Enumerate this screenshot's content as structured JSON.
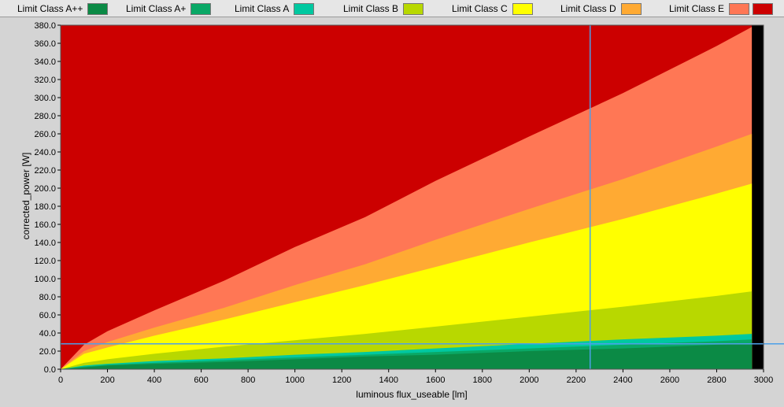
{
  "legend": {
    "items": [
      {
        "label": "Limit Class A++",
        "color": "#0b8a45"
      },
      {
        "label": "Limit Class A+",
        "color": "#0aa866"
      },
      {
        "label": "Limit Class A",
        "color": "#00c8a0"
      },
      {
        "label": "Limit Class B",
        "color": "#b8d800"
      },
      {
        "label": "Limit Class C",
        "color": "#ffff00"
      },
      {
        "label": "Limit Class D",
        "color": "#ffaa33"
      },
      {
        "label": "Limit Class E",
        "color": "#ff7755"
      },
      {
        "label": "",
        "color": "#cc0000"
      }
    ]
  },
  "chart_data": {
    "type": "area",
    "xlabel": "luminous flux_useable [lm]",
    "ylabel": "corrected_power [W]",
    "xlim": [
      0,
      3000
    ],
    "ylim": [
      0,
      380
    ],
    "xticks": [
      "0",
      "200",
      "400",
      "600",
      "800",
      "1000",
      "1200",
      "1400",
      "1600",
      "1800",
      "2000",
      "2200",
      "2400",
      "2600",
      "2800",
      "3000"
    ],
    "yticks": [
      "0.0",
      "20.0",
      "40.0",
      "60.0",
      "80.0",
      "100.0",
      "120.0",
      "140.0",
      "160.0",
      "180.0",
      "200.0",
      "220.0",
      "240.0",
      "260.0",
      "280.0",
      "300.0",
      "320.0",
      "340.0",
      "360.0",
      "380.0"
    ],
    "x_end": 2950,
    "background_color": "#cc0000",
    "bands": [
      {
        "color": "#ff7755",
        "x": [
          0,
          100,
          200,
          400,
          700,
          1000,
          1300,
          1600,
          2000,
          2400,
          2800,
          2950
        ],
        "y": [
          0,
          27,
          42,
          65,
          98,
          135,
          168,
          208,
          257,
          305,
          357,
          378
        ]
      },
      {
        "color": "#ffaa33",
        "x": [
          0,
          100,
          200,
          400,
          700,
          1000,
          1300,
          1600,
          2000,
          2400,
          2800,
          2950
        ],
        "y": [
          0,
          20,
          30,
          46,
          68,
          93,
          116,
          143,
          177,
          210,
          246,
          260
        ]
      },
      {
        "color": "#ffff00",
        "x": [
          0,
          100,
          200,
          400,
          700,
          1000,
          1300,
          1600,
          2000,
          2400,
          2800,
          2950
        ],
        "y": [
          0,
          17,
          24,
          37,
          55,
          74,
          93,
          113,
          140,
          166,
          194,
          205
        ]
      },
      {
        "color": "#b8d800",
        "x": [
          0,
          100,
          200,
          400,
          700,
          1000,
          1300,
          1600,
          2000,
          2400,
          2800,
          2950
        ],
        "y": [
          0,
          7,
          11,
          17,
          25,
          32,
          39,
          47,
          58,
          69,
          81,
          86
        ]
      },
      {
        "color": "#00c8a0",
        "x": [
          0,
          100,
          200,
          400,
          700,
          1000,
          1300,
          1600,
          2000,
          2400,
          2800,
          2950
        ],
        "y": [
          0,
          4,
          6,
          9,
          12,
          16,
          19,
          23,
          28,
          33,
          37,
          39
        ]
      },
      {
        "color": "#0aa866",
        "x": [
          0,
          100,
          200,
          400,
          700,
          1000,
          1300,
          1600,
          2000,
          2400,
          2800,
          2950
        ],
        "y": [
          0,
          3,
          5,
          7,
          10,
          13,
          16,
          19,
          23,
          27,
          31,
          33
        ]
      },
      {
        "color": "#0b8a45",
        "x": [
          0,
          100,
          200,
          400,
          700,
          1000,
          1300,
          1600,
          2000,
          2400,
          2800,
          2950
        ],
        "y": [
          0,
          2,
          4,
          6,
          8,
          11,
          14,
          16,
          20,
          23,
          27,
          28
        ]
      }
    ],
    "cursor": {
      "x": 2260,
      "y": 28,
      "color": "#4da0e8"
    },
    "colors": {
      "plot_border": "#000000",
      "tick_text": "#000000"
    }
  }
}
